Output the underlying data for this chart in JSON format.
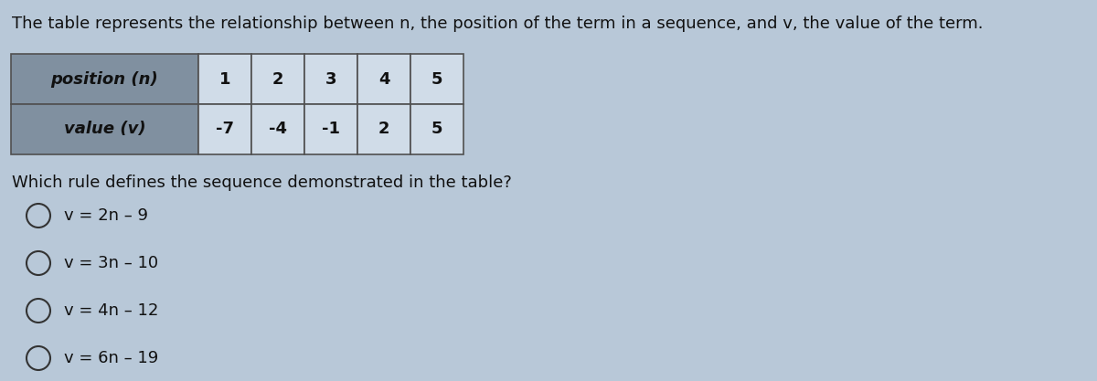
{
  "title_text": "The table represents the relationship between n, the position of the term in a sequence, and v, the value of the term.",
  "row0_label": "position (n)",
  "row1_label": "value (v)",
  "positions": [
    "1",
    "2",
    "3",
    "4",
    "5"
  ],
  "values": [
    "-7",
    "-4",
    "-1",
    "2",
    "5"
  ],
  "question": "Which rule defines the sequence demonstrated in the table?",
  "options": [
    "v = 2n – 9",
    "v = 3n – 10",
    "v = 4n – 12",
    "v = 6n – 19"
  ],
  "bg_color": "#b8c8d8",
  "table_header_bg": "#8090a0",
  "table_data_bg": "#d0dce8",
  "table_border_color": "#505050",
  "text_color": "#111111",
  "title_fontsize": 13,
  "question_fontsize": 13,
  "option_fontsize": 13,
  "table_fontsize": 13
}
